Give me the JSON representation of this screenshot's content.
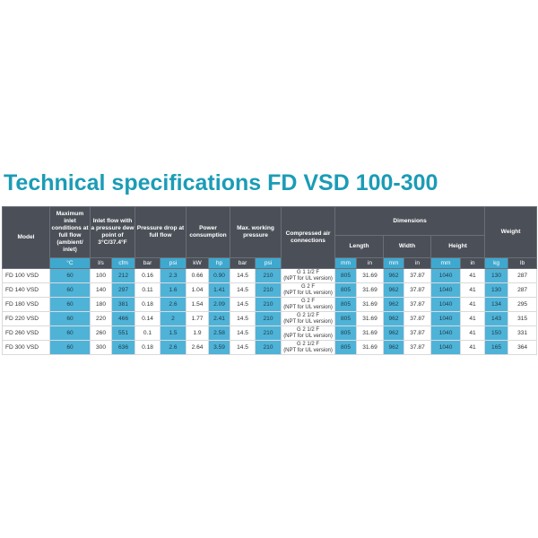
{
  "header": {
    "title": "Technical specifications FD VSD 100-300"
  },
  "table": {
    "groups": [
      "Model",
      "Maximum inlet conditions at full flow (ambient/ inlet)",
      "Inlet flow with a pressure dew point of 3°C/37.4°F",
      "Pressure drop at full flow",
      "Power consumption",
      "Max. working pressure",
      "Compressed air connections",
      "Dimensions",
      "Weight"
    ],
    "dimension_groups": [
      "Length",
      "Width",
      "Height"
    ],
    "units": [
      "°C",
      "l/s",
      "cfm",
      "bar",
      "psi",
      "kW",
      "hp",
      "bar",
      "psi",
      "mm",
      "in",
      "mm",
      "in",
      "mm",
      "in",
      "kg",
      "lb"
    ],
    "rows": [
      {
        "model": "FD 100 VSD",
        "cells": [
          "60",
          "100",
          "212",
          "0.16",
          "2.3",
          "0.66",
          "0.90",
          "14.5",
          "210",
          "805",
          "31.69",
          "962",
          "37.87",
          "1040",
          "41",
          "130",
          "287"
        ],
        "connection": [
          "G 1 1/2 F",
          "(NPT for UL version)"
        ]
      },
      {
        "model": "FD 140 VSD",
        "cells": [
          "60",
          "140",
          "297",
          "0.11",
          "1.6",
          "1.04",
          "1.41",
          "14.5",
          "210",
          "805",
          "31.69",
          "962",
          "37.87",
          "1040",
          "41",
          "130",
          "287"
        ],
        "connection": [
          "G 2 F",
          "(NPT for UL version)"
        ]
      },
      {
        "model": "FD 180 VSD",
        "cells": [
          "60",
          "180",
          "381",
          "0.18",
          "2.6",
          "1.54",
          "2.09",
          "14.5",
          "210",
          "805",
          "31.69",
          "962",
          "37.87",
          "1040",
          "41",
          "134",
          "295"
        ],
        "connection": [
          "G 2 F",
          "(NPT for UL version)"
        ]
      },
      {
        "model": "FD 220 VSD",
        "cells": [
          "60",
          "220",
          "466",
          "0.14",
          "2",
          "1.77",
          "2.41",
          "14.5",
          "210",
          "805",
          "31.69",
          "962",
          "37.87",
          "1040",
          "41",
          "143",
          "315"
        ],
        "connection": [
          "G 2 1/2 F",
          "(NPT for UL version)"
        ]
      },
      {
        "model": "FD 260 VSD",
        "cells": [
          "60",
          "260",
          "551",
          "0.1",
          "1.5",
          "1.9",
          "2.58",
          "14.5",
          "210",
          "805",
          "31.69",
          "962",
          "37.87",
          "1040",
          "41",
          "150",
          "331"
        ],
        "connection": [
          "G 2 1/2 F",
          "(NPT for UL version)"
        ]
      },
      {
        "model": "FD 300 VSD",
        "cells": [
          "60",
          "300",
          "636",
          "0.18",
          "2.6",
          "2.64",
          "3.59",
          "14.5",
          "210",
          "805",
          "31.69",
          "962",
          "37.87",
          "1040",
          "41",
          "165",
          "364"
        ],
        "connection": [
          "G 2 1/2 F",
          "(NPT for UL version)"
        ]
      }
    ]
  }
}
